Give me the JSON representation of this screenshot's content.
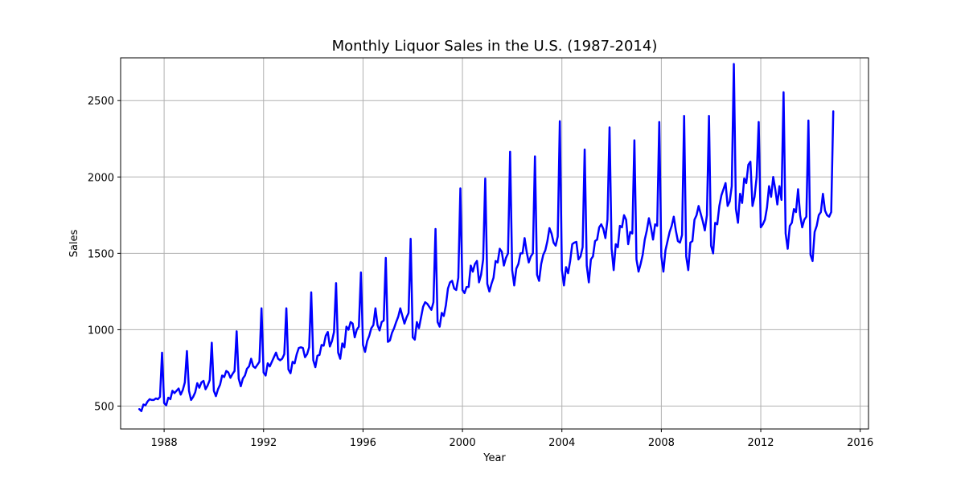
{
  "chart_data": {
    "type": "line",
    "title": "Monthly Liquor Sales in the U.S. (1987-2014)",
    "xlabel": "Year",
    "ylabel": "Sales",
    "xlim": [
      "1986-04",
      "2016-05"
    ],
    "ylim": [
      350,
      2780
    ],
    "grid": true,
    "x_ticks": [
      "1988",
      "1992",
      "1996",
      "2000",
      "2004",
      "2008",
      "2012",
      "2016"
    ],
    "y_ticks": [
      500,
      1000,
      1500,
      2000,
      2500
    ],
    "series": [
      {
        "color": "#0000ff",
        "x": [
          "1987-01",
          "1987-02",
          "1987-03",
          "1987-04",
          "1987-05",
          "1987-06",
          "1987-07",
          "1987-08",
          "1987-09",
          "1987-10",
          "1987-11",
          "1987-12",
          "1988-01",
          "1988-02",
          "1988-03",
          "1988-04",
          "1988-05",
          "1988-06",
          "1988-07",
          "1988-08",
          "1988-09",
          "1988-10",
          "1988-11",
          "1988-12",
          "1989-01",
          "1989-02",
          "1989-03",
          "1989-04",
          "1989-05",
          "1989-06",
          "1989-07",
          "1989-08",
          "1989-09",
          "1989-10",
          "1989-11",
          "1989-12",
          "1990-01",
          "1990-02",
          "1990-03",
          "1990-04",
          "1990-05",
          "1990-06",
          "1990-07",
          "1990-08",
          "1990-09",
          "1990-10",
          "1990-11",
          "1990-12",
          "1991-01",
          "1991-02",
          "1991-03",
          "1991-04",
          "1991-05",
          "1991-06",
          "1991-07",
          "1991-08",
          "1991-09",
          "1991-10",
          "1991-11",
          "1991-12",
          "1992-01",
          "1992-02",
          "1992-03",
          "1992-04",
          "1992-05",
          "1992-06",
          "1992-07",
          "1992-08",
          "1992-09",
          "1992-10",
          "1992-11",
          "1992-12",
          "1993-01",
          "1993-02",
          "1993-03",
          "1993-04",
          "1993-05",
          "1993-06",
          "1993-07",
          "1993-08",
          "1993-09",
          "1993-10",
          "1993-11",
          "1993-12",
          "1994-01",
          "1994-02",
          "1994-03",
          "1994-04",
          "1994-05",
          "1994-06",
          "1994-07",
          "1994-08",
          "1994-09",
          "1994-10",
          "1994-11",
          "1994-12",
          "1995-01",
          "1995-02",
          "1995-03",
          "1995-04",
          "1995-05",
          "1995-06",
          "1995-07",
          "1995-08",
          "1995-09",
          "1995-10",
          "1995-11",
          "1995-12",
          "1996-01",
          "1996-02",
          "1996-03",
          "1996-04",
          "1996-05",
          "1996-06",
          "1996-07",
          "1996-08",
          "1996-09",
          "1996-10",
          "1996-11",
          "1996-12",
          "1997-01",
          "1997-02",
          "1997-03",
          "1997-04",
          "1997-05",
          "1997-06",
          "1997-07",
          "1997-08",
          "1997-09",
          "1997-10",
          "1997-11",
          "1997-12",
          "1998-01",
          "1998-02",
          "1998-03",
          "1998-04",
          "1998-05",
          "1998-06",
          "1998-07",
          "1998-08",
          "1998-09",
          "1998-10",
          "1998-11",
          "1998-12",
          "1999-01",
          "1999-02",
          "1999-03",
          "1999-04",
          "1999-05",
          "1999-06",
          "1999-07",
          "1999-08",
          "1999-09",
          "1999-10",
          "1999-11",
          "1999-12",
          "2000-01",
          "2000-02",
          "2000-03",
          "2000-04",
          "2000-05",
          "2000-06",
          "2000-07",
          "2000-08",
          "2000-09",
          "2000-10",
          "2000-11",
          "2000-12",
          "2001-01",
          "2001-02",
          "2001-03",
          "2001-04",
          "2001-05",
          "2001-06",
          "2001-07",
          "2001-08",
          "2001-09",
          "2001-10",
          "2001-11",
          "2001-12",
          "2002-01",
          "2002-02",
          "2002-03",
          "2002-04",
          "2002-05",
          "2002-06",
          "2002-07",
          "2002-08",
          "2002-09",
          "2002-10",
          "2002-11",
          "2002-12",
          "2003-01",
          "2003-02",
          "2003-03",
          "2003-04",
          "2003-05",
          "2003-06",
          "2003-07",
          "2003-08",
          "2003-09",
          "2003-10",
          "2003-11",
          "2003-12",
          "2004-01",
          "2004-02",
          "2004-03",
          "2004-04",
          "2004-05",
          "2004-06",
          "2004-07",
          "2004-08",
          "2004-09",
          "2004-10",
          "2004-11",
          "2004-12",
          "2005-01",
          "2005-02",
          "2005-03",
          "2005-04",
          "2005-05",
          "2005-06",
          "2005-07",
          "2005-08",
          "2005-09",
          "2005-10",
          "2005-11",
          "2005-12",
          "2006-01",
          "2006-02",
          "2006-03",
          "2006-04",
          "2006-05",
          "2006-06",
          "2006-07",
          "2006-08",
          "2006-09",
          "2006-10",
          "2006-11",
          "2006-12",
          "2007-01",
          "2007-02",
          "2007-03",
          "2007-04",
          "2007-05",
          "2007-06",
          "2007-07",
          "2007-08",
          "2007-09",
          "2007-10",
          "2007-11",
          "2007-12",
          "2008-01",
          "2008-02",
          "2008-03",
          "2008-04",
          "2008-05",
          "2008-06",
          "2008-07",
          "2008-08",
          "2008-09",
          "2008-10",
          "2008-11",
          "2008-12",
          "2009-01",
          "2009-02",
          "2009-03",
          "2009-04",
          "2009-05",
          "2009-06",
          "2009-07",
          "2009-08",
          "2009-09",
          "2009-10",
          "2009-11",
          "2009-12",
          "2010-01",
          "2010-02",
          "2010-03",
          "2010-04",
          "2010-05",
          "2010-06",
          "2010-07",
          "2010-08",
          "2010-09",
          "2010-10",
          "2010-11",
          "2010-12",
          "2011-01",
          "2011-02",
          "2011-03",
          "2011-04",
          "2011-05",
          "2011-06",
          "2011-07",
          "2011-08",
          "2011-09",
          "2011-10",
          "2011-11",
          "2011-12",
          "2012-01",
          "2012-02",
          "2012-03",
          "2012-04",
          "2012-05",
          "2012-06",
          "2012-07",
          "2012-08",
          "2012-09",
          "2012-10",
          "2012-11",
          "2012-12",
          "2013-01",
          "2013-02",
          "2013-03",
          "2013-04",
          "2013-05",
          "2013-06",
          "2013-07",
          "2013-08",
          "2013-09",
          "2013-10",
          "2013-11",
          "2013-12",
          "2014-01",
          "2014-02",
          "2014-03",
          "2014-04",
          "2014-05",
          "2014-06",
          "2014-07",
          "2014-08",
          "2014-09",
          "2014-10",
          "2014-11",
          "2014-12"
        ],
        "values": [
          480,
          467,
          510,
          505,
          530,
          545,
          540,
          540,
          550,
          545,
          560,
          850,
          520,
          505,
          555,
          545,
          600,
          585,
          600,
          615,
          575,
          605,
          655,
          860,
          600,
          540,
          560,
          590,
          650,
          620,
          655,
          665,
          610,
          635,
          670,
          915,
          600,
          565,
          610,
          640,
          700,
          690,
          730,
          720,
          685,
          710,
          730,
          990,
          680,
          630,
          680,
          700,
          745,
          760,
          810,
          760,
          750,
          770,
          790,
          1140,
          720,
          700,
          780,
          760,
          790,
          820,
          850,
          810,
          800,
          810,
          840,
          1140,
          740,
          715,
          790,
          780,
          840,
          880,
          885,
          880,
          820,
          840,
          885,
          1245,
          800,
          755,
          830,
          835,
          900,
          895,
          960,
          985,
          890,
          925,
          985,
          1305,
          850,
          810,
          910,
          885,
          1020,
          1000,
          1050,
          1040,
          950,
          1000,
          1020,
          1375,
          900,
          855,
          925,
          960,
          1010,
          1030,
          1140,
          1030,
          995,
          1050,
          1060,
          1470,
          920,
          930,
          980,
          1010,
          1050,
          1085,
          1140,
          1090,
          1040,
          1080,
          1110,
          1595,
          950,
          935,
          1050,
          1010,
          1080,
          1150,
          1180,
          1170,
          1150,
          1130,
          1180,
          1660,
          1050,
          1020,
          1110,
          1090,
          1160,
          1270,
          1310,
          1320,
          1270,
          1260,
          1340,
          1925,
          1260,
          1240,
          1280,
          1280,
          1420,
          1380,
          1430,
          1450,
          1310,
          1360,
          1460,
          1990,
          1300,
          1250,
          1300,
          1340,
          1450,
          1440,
          1530,
          1510,
          1420,
          1470,
          1500,
          2165,
          1390,
          1290,
          1400,
          1430,
          1500,
          1500,
          1600,
          1510,
          1440,
          1480,
          1500,
          2135,
          1360,
          1320,
          1430,
          1490,
          1520,
          1580,
          1665,
          1630,
          1570,
          1550,
          1610,
          2365,
          1390,
          1290,
          1410,
          1370,
          1450,
          1560,
          1570,
          1575,
          1460,
          1480,
          1540,
          2180,
          1420,
          1310,
          1460,
          1480,
          1580,
          1590,
          1670,
          1690,
          1660,
          1600,
          1720,
          2325,
          1530,
          1390,
          1560,
          1540,
          1680,
          1670,
          1750,
          1720,
          1560,
          1640,
          1630,
          2240,
          1460,
          1380,
          1430,
          1490,
          1590,
          1650,
          1730,
          1670,
          1590,
          1690,
          1680,
          2360,
          1480,
          1380,
          1520,
          1580,
          1640,
          1680,
          1740,
          1650,
          1580,
          1570,
          1620,
          2400,
          1480,
          1390,
          1570,
          1580,
          1720,
          1750,
          1810,
          1760,
          1710,
          1650,
          1750,
          2400,
          1550,
          1500,
          1700,
          1690,
          1810,
          1880,
          1920,
          1960,
          1810,
          1840,
          1940,
          2740,
          1790,
          1700,
          1890,
          1830,
          1990,
          1960,
          2080,
          2100,
          1810,
          1870,
          2000,
          2360,
          1670,
          1690,
          1720,
          1800,
          1940,
          1870,
          2000,
          1920,
          1820,
          1940,
          1850,
          2555,
          1630,
          1530,
          1680,
          1700,
          1790,
          1770,
          1920,
          1750,
          1670,
          1720,
          1740,
          2370,
          1490,
          1450,
          1640,
          1680,
          1750,
          1770,
          1890,
          1780,
          1750,
          1740,
          1770,
          2430
        ]
      }
    ]
  }
}
